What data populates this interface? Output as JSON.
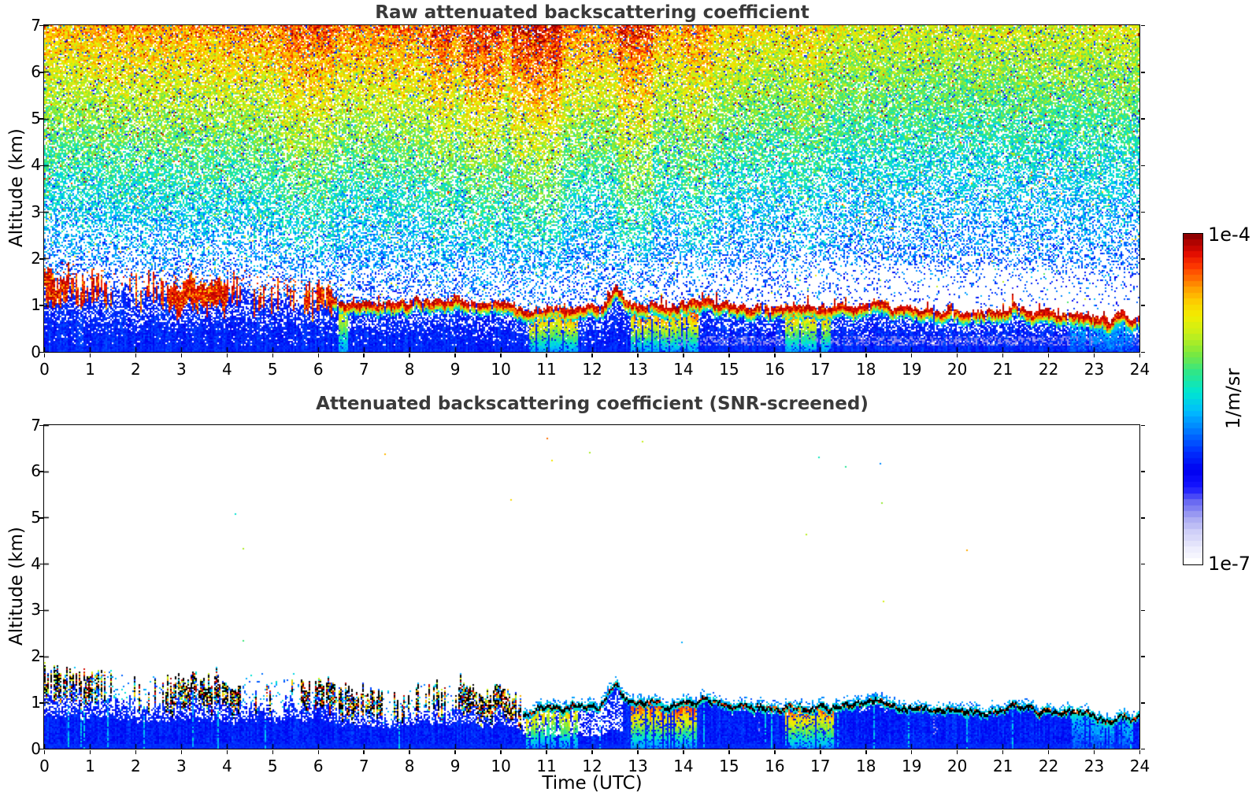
{
  "axes": {
    "x": {
      "label": "Time (UTC)",
      "min": 0,
      "max": 24,
      "ticks": [
        0,
        1,
        2,
        3,
        4,
        5,
        6,
        7,
        8,
        9,
        10,
        11,
        12,
        13,
        14,
        15,
        16,
        17,
        18,
        19,
        20,
        21,
        22,
        23,
        24
      ]
    },
    "y": {
      "label": "Altitude (km)",
      "min": 0,
      "max": 7,
      "ticks": [
        0,
        1,
        2,
        3,
        4,
        5,
        6,
        7
      ]
    }
  },
  "colorbar": {
    "max_label": "1e-4",
    "min_label": "1e-7",
    "unit_label": "1/m/sr",
    "scale": "log",
    "segments": 56,
    "stops": [
      [
        0.0,
        "#ffffff"
      ],
      [
        0.045,
        "#e9e9fc"
      ],
      [
        0.09,
        "#cfcff8"
      ],
      [
        0.135,
        "#a5a5f2"
      ],
      [
        0.18,
        "#6b6bf2"
      ],
      [
        0.23,
        "#1414ff"
      ],
      [
        0.28,
        "#0000f0"
      ],
      [
        0.34,
        "#0033ff"
      ],
      [
        0.4,
        "#0077ff"
      ],
      [
        0.46,
        "#00bbff"
      ],
      [
        0.52,
        "#00e6d0"
      ],
      [
        0.58,
        "#2ee68a"
      ],
      [
        0.64,
        "#7de83c"
      ],
      [
        0.7,
        "#c6ef1a"
      ],
      [
        0.755,
        "#f2ee00"
      ],
      [
        0.81,
        "#ffc400"
      ],
      [
        0.86,
        "#ff8000"
      ],
      [
        0.905,
        "#ff3c00"
      ],
      [
        0.95,
        "#e00800"
      ],
      [
        1.0,
        "#8f0000"
      ]
    ]
  },
  "chart_data": [
    {
      "type": "heatmap",
      "title": "Raw attenuated backscattering coefficient",
      "xlabel": "Time (UTC)",
      "ylabel": "Altitude (km)",
      "xlim": [
        0,
        24
      ],
      "ylim": [
        0,
        7
      ],
      "x_ticks": [
        0,
        1,
        2,
        3,
        4,
        5,
        6,
        7,
        8,
        9,
        10,
        11,
        12,
        13,
        14,
        15,
        16,
        17,
        18,
        19,
        20,
        21,
        22,
        23,
        24
      ],
      "y_ticks": [
        0,
        1,
        2,
        3,
        4,
        5,
        6,
        7
      ],
      "value_range": [
        "1e-7",
        "1e-4"
      ],
      "value_units": "1/m/sr",
      "description": "Raw range-corrected lidar backscatter: speckle noise whose value grows with altitude (blue low, green mid, yellow-orange-red high), a dark-red aerosol/cloud layer near 1-1.5 km, dense blue below the layer, warm precipitation streaks under the layer near 11, 13-14 and 16-17 UTC",
      "layer_top_km": {
        "x": [
          0,
          0.3,
          0.6,
          0.9,
          1.2,
          1.5,
          1.8,
          2.1,
          2.4,
          2.7,
          3,
          3.3,
          3.6,
          3.9,
          4.2,
          4.5,
          4.8,
          5.1,
          5.4,
          5.7,
          6,
          6.3,
          6.6,
          7,
          7.4,
          7.8,
          8.2,
          8.6,
          9,
          9.4,
          9.8,
          10.2,
          10.6,
          11,
          11.4,
          11.8,
          12.2,
          12.55,
          12.75,
          13,
          13.3,
          13.6,
          13.9,
          14.2,
          14.5,
          14.8,
          15.2,
          15.6,
          16,
          16.5,
          17,
          17.5,
          18,
          18.3,
          18.6,
          19,
          19.5,
          20,
          20.5,
          21,
          21.3,
          21.6,
          22,
          22.5,
          23,
          23.3,
          23.6,
          23.8,
          24
        ],
        "y": [
          1.45,
          1.35,
          1.5,
          1.3,
          1.5,
          1.25,
          1.35,
          1.2,
          1.3,
          1.15,
          1.25,
          1.35,
          1.2,
          1.3,
          1.15,
          1.25,
          1.1,
          1.2,
          1.3,
          1.15,
          1.25,
          1.1,
          1.0,
          1.05,
          0.95,
          1.0,
          1.1,
          1.05,
          1.1,
          1.0,
          1.05,
          0.95,
          0.85,
          0.95,
          0.9,
          0.95,
          0.9,
          1.4,
          1.1,
          0.95,
          1.05,
          0.9,
          1.0,
          1.05,
          1.1,
          1.0,
          0.95,
          0.95,
          0.9,
          0.95,
          0.9,
          0.95,
          0.95,
          1.1,
          0.95,
          0.9,
          0.9,
          0.85,
          0.85,
          0.85,
          1.0,
          0.85,
          0.8,
          0.8,
          0.75,
          0.65,
          0.8,
          0.7,
          0.75
        ]
      },
      "render": {
        "seed": 12345,
        "spiky_until": 6.3,
        "base_profile": {
          "z0": 0.7,
          "span": 6.3,
          "v_min": 0.33,
          "v_span": 0.52,
          "exp": 1.15
        },
        "time_gain": {
          "x": [
            0,
            3,
            8,
            11,
            13,
            15,
            17,
            20,
            24
          ],
          "y": [
            0.94,
            0.99,
            1.04,
            1.05,
            1.0,
            0.9,
            0.8,
            0.76,
            0.78
          ]
        },
        "sparse_right": {
          "x": [
            0,
            6,
            12,
            14,
            16,
            18,
            21,
            24
          ],
          "y": [
            0,
            0,
            0.04,
            0.1,
            0.2,
            0.25,
            0.26,
            0.26
          ]
        },
        "tint_columns": [
          [
            5.2,
            6.35,
            0.05
          ],
          [
            8.45,
            8.95,
            0.05
          ],
          [
            9.2,
            10.05,
            0.07
          ],
          [
            10.25,
            11.35,
            0.09
          ],
          [
            12.6,
            13.35,
            0.09
          ],
          [
            13.95,
            14.65,
            0.05
          ],
          [
            16.35,
            17.15,
            0.04
          ]
        ],
        "precip": [
          [
            6.45,
            6.65,
            0.5,
            "warm"
          ],
          [
            10.55,
            11.7,
            0.9,
            "warm"
          ],
          [
            12.85,
            14.35,
            1.0,
            "warm"
          ],
          [
            16.25,
            17.3,
            0.8,
            "warm"
          ],
          [
            22.5,
            23.9,
            0.5,
            "cool"
          ]
        ],
        "lavender_band": [
          13.5,
          24,
          0.12,
          0.32
        ]
      }
    },
    {
      "type": "heatmap",
      "title": "Attenuated backscattering coefficient (SNR-screened)",
      "xlabel": "Time (UTC)",
      "ylabel": "Altitude (km)",
      "xlim": [
        0,
        24
      ],
      "ylim": [
        0,
        7
      ],
      "x_ticks": [
        0,
        1,
        2,
        3,
        4,
        5,
        6,
        7,
        8,
        9,
        10,
        11,
        12,
        13,
        14,
        15,
        16,
        17,
        18,
        19,
        20,
        21,
        22,
        23,
        24
      ],
      "y_ticks": [
        0,
        1,
        2,
        3,
        4,
        5,
        6,
        7
      ],
      "value_range": [
        "1e-7",
        "1e-4"
      ],
      "value_units": "1/m/sr",
      "description": "Same field after SNR screening: everything above the boundary layer is blanked to white; jagged black-contoured layer top near 1 km descending to ~0.7 km by 24 UTC, spiky multicolour cloud tops before 10.5 UTC, solid blue below with pale lavender patches and warm precipitation streaks near 13-14 and 16-17 UTC",
      "layer_top_km": {
        "x": [
          0,
          0.3,
          0.6,
          0.9,
          1.2,
          1.5,
          1.8,
          2.1,
          2.4,
          2.7,
          3,
          3.3,
          3.6,
          3.9,
          4.2,
          4.5,
          4.8,
          5.1,
          5.4,
          5.7,
          6,
          6.3,
          6.6,
          7,
          7.4,
          7.8,
          8.2,
          8.6,
          9,
          9.4,
          9.8,
          10.2,
          10.6,
          11,
          11.4,
          11.8,
          12.2,
          12.55,
          12.75,
          13,
          13.3,
          13.6,
          13.9,
          14.2,
          14.5,
          14.8,
          15.2,
          15.6,
          16,
          16.5,
          17,
          17.5,
          18,
          18.3,
          18.6,
          19,
          19.5,
          20,
          20.5,
          21,
          21.3,
          21.6,
          22,
          22.5,
          23,
          23.3,
          23.6,
          23.8,
          24
        ],
        "y": [
          1.45,
          1.35,
          1.5,
          1.3,
          1.5,
          1.25,
          1.35,
          1.2,
          1.3,
          1.15,
          1.25,
          1.35,
          1.2,
          1.3,
          1.15,
          1.25,
          1.1,
          1.2,
          1.3,
          1.15,
          1.25,
          1.1,
          1.0,
          1.05,
          0.95,
          1.0,
          1.1,
          1.05,
          1.1,
          1.0,
          1.05,
          0.95,
          0.85,
          0.95,
          0.9,
          0.95,
          0.9,
          1.4,
          1.1,
          0.95,
          1.05,
          0.9,
          1.0,
          1.05,
          1.1,
          1.0,
          0.95,
          0.95,
          0.9,
          0.95,
          0.9,
          0.95,
          0.95,
          1.1,
          0.95,
          0.9,
          0.9,
          0.85,
          0.85,
          0.85,
          1.0,
          0.85,
          0.8,
          0.8,
          0.75,
          0.65,
          0.8,
          0.7,
          0.75
        ]
      },
      "render": {
        "seed": 98765,
        "spiky_until": 10.5,
        "precip": [
          [
            10.55,
            11.7,
            0.7,
            "warm"
          ],
          [
            12.85,
            14.35,
            1.0,
            "warm"
          ],
          [
            16.25,
            17.3,
            0.85,
            "warm"
          ],
          [
            22.5,
            23.9,
            0.5,
            "cool"
          ]
        ],
        "lavender_patches": [
          [
            0,
            4.6,
            0.25,
            0.65,
            0.35
          ],
          [
            14.3,
            21.6,
            0.15,
            0.75,
            0.5
          ],
          [
            21.6,
            24,
            0.08,
            0.5,
            0.25
          ]
        ],
        "white_holes": [
          [
            0,
            10.5,
            0.5,
            0.95,
            0.35
          ],
          [
            10.5,
            12.7,
            0.3,
            0.9,
            0.5
          ],
          [
            15,
            18.5,
            0.8,
            1.0,
            0.25
          ]
        ],
        "stray_dots": 18
      }
    }
  ]
}
